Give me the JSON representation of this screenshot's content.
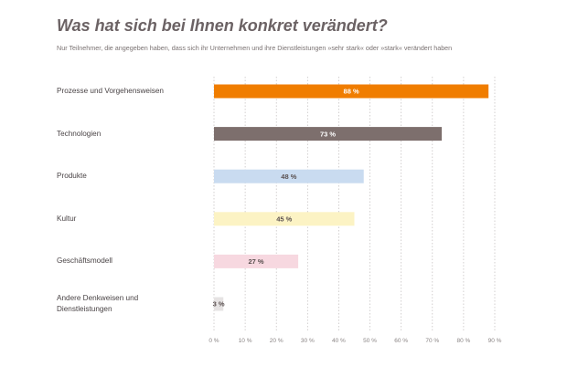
{
  "title": "Was hat sich bei Ihnen konkret verändert?",
  "subtitle": "Nur Teilnehmer, die angegeben haben, dass sich ihr Unternehmen und ihre Dienstleistungen »sehr stark« oder »stark« verändert haben",
  "chart_data": {
    "type": "bar",
    "orientation": "horizontal",
    "title": "Was hat sich bei Ihnen konkret verändert?",
    "subtitle": "Nur Teilnehmer, die angegeben haben, dass sich ihr Unternehmen und ihre Dienstleistungen »sehr stark« oder »stark« verändert haben",
    "categories": [
      "Prozesse und Vorgehensweisen",
      "Technologien",
      "Produkte",
      "Kultur",
      "Geschäftsmodell",
      "Andere Denkweisen und Dienstleistungen"
    ],
    "values": [
      88,
      73,
      48,
      45,
      27,
      3
    ],
    "value_labels": [
      "88 %",
      "73 %",
      "48 %",
      "45 %",
      "27 %",
      "3 %"
    ],
    "bar_colors": [
      "#f07d00",
      "#7d6f6d",
      "#c9dbf0",
      "#fcf3c4",
      "#f7d8e0",
      "#e6e3e3"
    ],
    "label_colors": [
      "#ffffff",
      "#ffffff",
      "#5a5050",
      "#5a5050",
      "#5a5050",
      "#5a5050"
    ],
    "xlim": [
      0,
      90
    ],
    "x_ticks": [
      "0 %",
      "10 %",
      "20 %",
      "30 %",
      "40 %",
      "50 %",
      "60 %",
      "70 %",
      "80 %",
      "90 %"
    ],
    "grid": "vertical-dotted",
    "xlabel": "",
    "ylabel": ""
  }
}
